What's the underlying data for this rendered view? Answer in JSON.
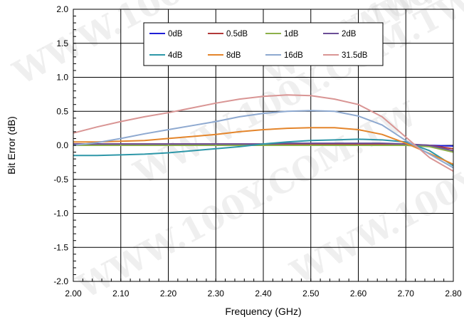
{
  "watermark": "WWW.100Y.COM.TW",
  "chart_data": {
    "type": "line",
    "xlabel": "Frequency (GHz)",
    "ylabel": "Bit Error (dB)",
    "xlim": [
      2.0,
      2.8
    ],
    "ylim": [
      -2.0,
      2.0
    ],
    "x_ticks": [
      "2.00",
      "2.10",
      "2.20",
      "2.30",
      "2.40",
      "2.50",
      "2.60",
      "2.70",
      "2.80"
    ],
    "y_ticks": [
      "2.0",
      "1.5",
      "1.0",
      "0.5",
      "0.0",
      "-0.5",
      "-1.0",
      "-1.5",
      "-2.0"
    ],
    "grid": true,
    "legend_position": "top-center",
    "x": [
      2.0,
      2.05,
      2.1,
      2.15,
      2.2,
      2.25,
      2.3,
      2.35,
      2.4,
      2.45,
      2.5,
      2.55,
      2.6,
      2.65,
      2.7,
      2.75,
      2.8
    ],
    "series": [
      {
        "name": "0dB",
        "color": "#1f1fd6",
        "values": [
          0.01,
          0.01,
          0.01,
          0.01,
          0.01,
          0.01,
          0.01,
          0.01,
          0.01,
          0.01,
          0.01,
          0.01,
          0.01,
          0.01,
          0.01,
          0.0,
          -0.01
        ]
      },
      {
        "name": "0.5dB",
        "color": "#b23a3a",
        "values": [
          0.02,
          0.02,
          0.02,
          0.02,
          0.02,
          0.02,
          0.02,
          0.02,
          0.02,
          0.02,
          0.02,
          0.02,
          0.02,
          0.02,
          0.01,
          0.0,
          -0.05
        ]
      },
      {
        "name": "1dB",
        "color": "#8db04a",
        "values": [
          0.0,
          0.0,
          0.0,
          0.0,
          0.0,
          0.0,
          0.0,
          0.0,
          0.0,
          0.0,
          0.0,
          0.0,
          0.0,
          0.0,
          0.0,
          -0.02,
          -0.1
        ]
      },
      {
        "name": "2dB",
        "color": "#6b4e96",
        "values": [
          0.02,
          0.02,
          0.02,
          0.02,
          0.02,
          0.02,
          0.02,
          0.02,
          0.02,
          0.03,
          0.03,
          0.03,
          0.03,
          0.03,
          0.02,
          0.0,
          -0.08
        ]
      },
      {
        "name": "4dB",
        "color": "#2e97a8",
        "values": [
          -0.15,
          -0.15,
          -0.14,
          -0.13,
          -0.11,
          -0.08,
          -0.05,
          -0.02,
          0.02,
          0.05,
          0.07,
          0.08,
          0.09,
          0.08,
          0.05,
          -0.08,
          -0.3
        ]
      },
      {
        "name": "8dB",
        "color": "#e4852b",
        "values": [
          0.05,
          0.05,
          0.06,
          0.07,
          0.1,
          0.13,
          0.16,
          0.2,
          0.23,
          0.25,
          0.26,
          0.26,
          0.23,
          0.16,
          0.03,
          -0.12,
          -0.28
        ]
      },
      {
        "name": "16dB",
        "color": "#8ea9d0",
        "values": [
          0.0,
          0.04,
          0.1,
          0.17,
          0.23,
          0.29,
          0.35,
          0.42,
          0.47,
          0.5,
          0.51,
          0.5,
          0.43,
          0.3,
          0.07,
          -0.13,
          -0.33
        ]
      },
      {
        "name": "31.5dB",
        "color": "#d99594",
        "values": [
          0.18,
          0.27,
          0.35,
          0.42,
          0.48,
          0.55,
          0.62,
          0.68,
          0.72,
          0.74,
          0.73,
          0.68,
          0.6,
          0.42,
          0.12,
          -0.18,
          -0.38
        ]
      }
    ]
  }
}
